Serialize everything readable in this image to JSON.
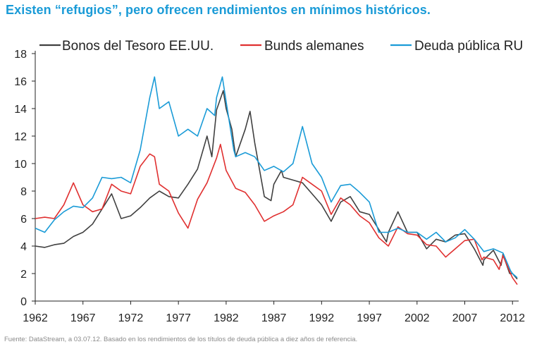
{
  "title": "Existen “refugios”, pero ofrecen rendimientos en mínimos históricos.",
  "source": "Fuente: DataStream, a 03.07.12. Basado en los rendimientos de los títulos de deuda pública a diez años de referencia.",
  "chart_data": {
    "type": "line",
    "title": "",
    "xlabel": "",
    "ylabel": "",
    "xlim": [
      1962,
      2012.5
    ],
    "ylim": [
      0,
      18
    ],
    "x_ticks": [
      1962,
      1967,
      1972,
      1977,
      1982,
      1987,
      1992,
      1997,
      2002,
      2007,
      2012
    ],
    "y_ticks": [
      0,
      2,
      4,
      6,
      8,
      10,
      12,
      14,
      16,
      18
    ],
    "grid": false,
    "legend_position": "top",
    "series": [
      {
        "name": "Bonos del Tesoro EE.UU.",
        "color": "#404040",
        "points": [
          [
            1962,
            4.0
          ],
          [
            1963,
            3.9
          ],
          [
            1964,
            4.1
          ],
          [
            1965,
            4.2
          ],
          [
            1966,
            4.7
          ],
          [
            1967,
            5.0
          ],
          [
            1968,
            5.6
          ],
          [
            1969,
            6.7
          ],
          [
            1970,
            7.8
          ],
          [
            1971,
            6.0
          ],
          [
            1972,
            6.2
          ],
          [
            1973,
            6.8
          ],
          [
            1974,
            7.5
          ],
          [
            1975,
            8.0
          ],
          [
            1976,
            7.6
          ],
          [
            1977,
            7.5
          ],
          [
            1978,
            8.5
          ],
          [
            1979,
            9.6
          ],
          [
            1980,
            12.0
          ],
          [
            1980.5,
            10.5
          ],
          [
            1981,
            13.9
          ],
          [
            1981.7,
            15.3
          ],
          [
            1982,
            14.0
          ],
          [
            1982.6,
            12.5
          ],
          [
            1983,
            10.5
          ],
          [
            1984,
            12.5
          ],
          [
            1984.5,
            13.8
          ],
          [
            1985,
            11.5
          ],
          [
            1986,
            7.6
          ],
          [
            1986.7,
            7.3
          ],
          [
            1987,
            8.5
          ],
          [
            1987.8,
            9.5
          ],
          [
            1988,
            9.0
          ],
          [
            1989,
            8.8
          ],
          [
            1990,
            8.6
          ],
          [
            1991,
            7.8
          ],
          [
            1992,
            7.0
          ],
          [
            1993,
            5.8
          ],
          [
            1994,
            7.2
          ],
          [
            1995,
            7.6
          ],
          [
            1996,
            6.5
          ],
          [
            1997,
            6.3
          ],
          [
            1998,
            5.2
          ],
          [
            1998.8,
            4.3
          ],
          [
            1999,
            5.0
          ],
          [
            2000,
            6.5
          ],
          [
            2001,
            5.0
          ],
          [
            2002,
            5.0
          ],
          [
            2003,
            3.8
          ],
          [
            2004,
            4.5
          ],
          [
            2005,
            4.3
          ],
          [
            2006,
            4.8
          ],
          [
            2007,
            4.9
          ],
          [
            2008,
            3.8
          ],
          [
            2008.9,
            2.6
          ],
          [
            2009,
            3.0
          ],
          [
            2010,
            3.7
          ],
          [
            2010.8,
            2.6
          ],
          [
            2011,
            3.4
          ],
          [
            2011.7,
            2.0
          ],
          [
            2012,
            2.0
          ],
          [
            2012.5,
            1.6
          ]
        ]
      },
      {
        "name": "Bunds alemanes",
        "color": "#e03030",
        "points": [
          [
            1962,
            6.0
          ],
          [
            1963,
            6.1
          ],
          [
            1964,
            6.0
          ],
          [
            1965,
            7.0
          ],
          [
            1966,
            8.6
          ],
          [
            1967,
            7.0
          ],
          [
            1968,
            6.5
          ],
          [
            1969,
            6.7
          ],
          [
            1970,
            8.5
          ],
          [
            1971,
            8.0
          ],
          [
            1972,
            7.8
          ],
          [
            1973,
            9.8
          ],
          [
            1974,
            10.7
          ],
          [
            1974.5,
            10.5
          ],
          [
            1975,
            8.5
          ],
          [
            1976,
            8.0
          ],
          [
            1977,
            6.4
          ],
          [
            1978,
            5.3
          ],
          [
            1979,
            7.4
          ],
          [
            1980,
            8.6
          ],
          [
            1981,
            10.4
          ],
          [
            1981.4,
            11.4
          ],
          [
            1982,
            9.5
          ],
          [
            1983,
            8.2
          ],
          [
            1984,
            7.9
          ],
          [
            1985,
            7.0
          ],
          [
            1986,
            5.8
          ],
          [
            1987,
            6.2
          ],
          [
            1988,
            6.5
          ],
          [
            1989,
            7.0
          ],
          [
            1990,
            9.0
          ],
          [
            1991,
            8.5
          ],
          [
            1992,
            8.0
          ],
          [
            1993,
            6.3
          ],
          [
            1994,
            7.5
          ],
          [
            1995,
            7.0
          ],
          [
            1996,
            6.2
          ],
          [
            1997,
            5.7
          ],
          [
            1998,
            4.6
          ],
          [
            1999,
            4.0
          ],
          [
            2000,
            5.4
          ],
          [
            2001,
            4.9
          ],
          [
            2002,
            4.8
          ],
          [
            2003,
            4.1
          ],
          [
            2004,
            4.0
          ],
          [
            2005,
            3.2
          ],
          [
            2006,
            3.8
          ],
          [
            2007,
            4.4
          ],
          [
            2008,
            4.5
          ],
          [
            2008.8,
            3.0
          ],
          [
            2009,
            3.2
          ],
          [
            2010,
            3.0
          ],
          [
            2010.6,
            2.3
          ],
          [
            2011,
            3.3
          ],
          [
            2011.8,
            2.0
          ],
          [
            2012,
            1.7
          ],
          [
            2012.5,
            1.2
          ]
        ]
      },
      {
        "name": "Deuda pública RU",
        "color": "#1a9bd7",
        "points": [
          [
            1962,
            5.3
          ],
          [
            1963,
            5.0
          ],
          [
            1964,
            5.9
          ],
          [
            1965,
            6.5
          ],
          [
            1966,
            6.9
          ],
          [
            1967,
            6.8
          ],
          [
            1968,
            7.5
          ],
          [
            1969,
            9.0
          ],
          [
            1970,
            8.9
          ],
          [
            1971,
            9.0
          ],
          [
            1972,
            8.6
          ],
          [
            1973,
            11.0
          ],
          [
            1974,
            14.8
          ],
          [
            1974.5,
            16.3
          ],
          [
            1975,
            14.0
          ],
          [
            1976,
            14.5
          ],
          [
            1977,
            12.0
          ],
          [
            1978,
            12.5
          ],
          [
            1979,
            12.0
          ],
          [
            1980,
            14.0
          ],
          [
            1980.8,
            13.5
          ],
          [
            1981,
            14.8
          ],
          [
            1981.6,
            16.3
          ],
          [
            1982,
            14.5
          ],
          [
            1982.8,
            11.0
          ],
          [
            1983,
            10.5
          ],
          [
            1984,
            10.8
          ],
          [
            1985,
            10.5
          ],
          [
            1986,
            9.5
          ],
          [
            1987,
            9.8
          ],
          [
            1988,
            9.4
          ],
          [
            1989,
            10.0
          ],
          [
            1990,
            12.7
          ],
          [
            1991,
            10.0
          ],
          [
            1992,
            9.0
          ],
          [
            1993,
            7.2
          ],
          [
            1994,
            8.4
          ],
          [
            1995,
            8.5
          ],
          [
            1996,
            7.9
          ],
          [
            1997,
            7.2
          ],
          [
            1998,
            5.0
          ],
          [
            1999,
            5.0
          ],
          [
            2000,
            5.3
          ],
          [
            2001,
            5.0
          ],
          [
            2002,
            5.0
          ],
          [
            2003,
            4.5
          ],
          [
            2004,
            5.0
          ],
          [
            2005,
            4.3
          ],
          [
            2006,
            4.6
          ],
          [
            2007,
            5.2
          ],
          [
            2008,
            4.5
          ],
          [
            2009,
            3.6
          ],
          [
            2010,
            3.8
          ],
          [
            2011,
            3.5
          ],
          [
            2011.8,
            2.2
          ],
          [
            2012,
            2.0
          ],
          [
            2012.5,
            1.7
          ]
        ]
      }
    ]
  }
}
